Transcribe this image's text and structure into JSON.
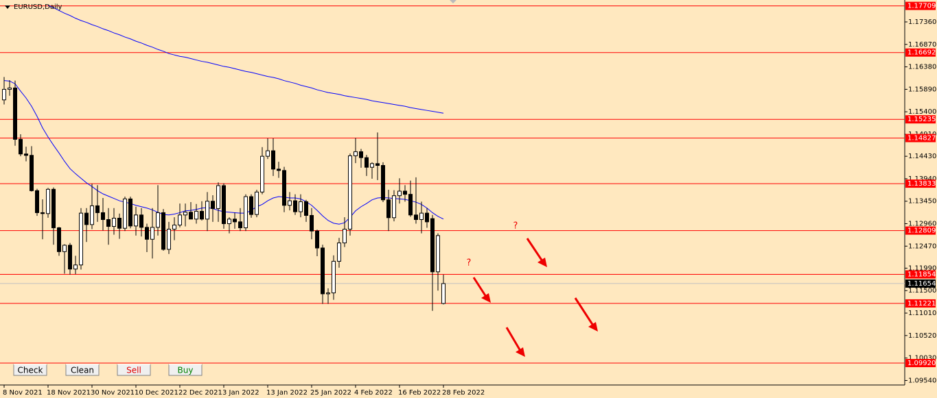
{
  "window": {
    "title": "EURUSD,Daily",
    "buttons": [
      {
        "label": "Check",
        "color": "#000000"
      },
      {
        "label": "Clean",
        "color": "#000000"
      },
      {
        "label": "Sell",
        "color": "#e00000"
      },
      {
        "label": "Buy",
        "color": "#008000"
      }
    ],
    "annotations": [
      "?",
      "?"
    ]
  },
  "chart_data": {
    "type": "candlestick",
    "categories": [
      "8 Nov 2021",
      null,
      null,
      null,
      null,
      null,
      null,
      null,
      "18 Nov 2021",
      null,
      null,
      null,
      null,
      null,
      null,
      null,
      "30 Nov 2021",
      null,
      null,
      null,
      null,
      null,
      null,
      null,
      "10 Dec 2021",
      null,
      null,
      null,
      null,
      null,
      null,
      null,
      "22 Dec 2021",
      null,
      null,
      null,
      null,
      null,
      null,
      null,
      "3 Jan 2022",
      null,
      null,
      null,
      null,
      null,
      null,
      null,
      "13 Jan 2022",
      null,
      null,
      null,
      null,
      null,
      null,
      null,
      "25 Jan 2022",
      null,
      null,
      null,
      null,
      null,
      null,
      null,
      "4 Feb 2022",
      null,
      null,
      null,
      null,
      null,
      null,
      null,
      "16 Feb 2022",
      null,
      null,
      null,
      null,
      null,
      null,
      null,
      "28 Feb 2022"
    ],
    "open": [
      1.1566,
      1.1589,
      1.1592,
      1.148,
      1.1448,
      1.1445,
      1.1368,
      1.132,
      1.1318,
      1.1371,
      1.1287,
      1.1235,
      1.1249,
      1.1197,
      1.1206,
      1.1319,
      1.1294,
      1.1335,
      1.132,
      1.1305,
      1.129,
      1.1308,
      1.1286,
      1.135,
      1.1291,
      1.1315,
      1.1288,
      1.1262,
      1.1288,
      1.132,
      1.124,
      1.1284,
      1.1293,
      1.1315,
      1.1321,
      1.1306,
      1.1323,
      1.1306,
      1.1345,
      1.1329,
      1.1379,
      1.1296,
      1.1306,
      1.13,
      1.1287,
      1.1355,
      1.1316,
      1.1365,
      1.1443,
      1.1455,
      1.1415,
      1.1412,
      1.1336,
      1.1346,
      1.1322,
      1.1344,
      1.1314,
      1.128,
      1.1243,
      1.1143,
      1.1145,
      1.1214,
      1.1254,
      1.1284,
      1.1444,
      1.1453,
      1.144,
      1.1419,
      1.1427,
      1.1423,
      1.1348,
      1.1309,
      1.1357,
      1.1367,
      1.136,
      1.1315,
      1.1305,
      1.1319,
      1.1307,
      1.1191,
      1.1122
    ],
    "high": [
      1.1616,
      1.1609,
      1.1608,
      1.1491,
      1.1464,
      1.1465,
      1.1372,
      1.1349,
      1.1374,
      1.1375,
      1.1289,
      1.1251,
      1.1254,
      1.1226,
      1.133,
      1.133,
      1.1383,
      1.138,
      1.1352,
      1.133,
      1.133,
      1.1318,
      1.1355,
      1.1355,
      1.1333,
      1.133,
      1.1296,
      1.133,
      1.138,
      1.1328,
      1.13,
      1.131,
      1.134,
      1.134,
      1.1343,
      1.1339,
      1.1345,
      1.1365,
      1.1358,
      1.1386,
      1.1384,
      1.131,
      1.132,
      1.133,
      1.136,
      1.136,
      1.137,
      1.1463,
      1.1482,
      1.1482,
      1.1431,
      1.142,
      1.1365,
      1.136,
      1.136,
      1.1348,
      1.133,
      1.1283,
      1.125,
      1.1155,
      1.1227,
      1.1265,
      1.131,
      1.1449,
      1.1483,
      1.1459,
      1.1446,
      1.143,
      1.1495,
      1.143,
      1.137,
      1.1369,
      1.1395,
      1.138,
      1.139,
      1.1397,
      1.1344,
      1.133,
      1.1315,
      1.1275,
      1.1185
    ],
    "low": [
      1.1556,
      1.1575,
      1.1466,
      1.1443,
      1.1432,
      1.1366,
      1.1313,
      1.1262,
      1.1309,
      1.125,
      1.1226,
      1.1187,
      1.1185,
      1.1186,
      1.1196,
      1.1256,
      1.1284,
      1.13,
      1.1281,
      1.125,
      1.1272,
      1.1263,
      1.128,
      1.1286,
      1.127,
      1.1268,
      1.1234,
      1.122,
      1.127,
      1.1237,
      1.123,
      1.126,
      1.1288,
      1.129,
      1.1306,
      1.1296,
      1.1303,
      1.128,
      1.13,
      1.13,
      1.1285,
      1.1275,
      1.1285,
      1.128,
      1.128,
      1.1309,
      1.131,
      1.136,
      1.1437,
      1.14,
      1.1396,
      1.1321,
      1.1325,
      1.1315,
      1.131,
      1.13,
      1.1262,
      1.1225,
      1.1121,
      1.1121,
      1.113,
      1.12,
      1.1245,
      1.127,
      1.1428,
      1.1418,
      1.14,
      1.1394,
      1.1391,
      1.1343,
      1.128,
      1.1301,
      1.134,
      1.1344,
      1.1311,
      1.1296,
      1.1275,
      1.1287,
      1.1106,
      1.115,
      1.112
    ],
    "close": [
      1.1589,
      1.1592,
      1.148,
      1.1448,
      1.1445,
      1.1368,
      1.132,
      1.1318,
      1.1371,
      1.1287,
      1.1235,
      1.1249,
      1.1197,
      1.1206,
      1.1319,
      1.1294,
      1.1335,
      1.132,
      1.1305,
      1.129,
      1.1308,
      1.1286,
      1.135,
      1.1291,
      1.1315,
      1.1288,
      1.1262,
      1.1288,
      1.132,
      1.124,
      1.1284,
      1.1293,
      1.1315,
      1.1321,
      1.1306,
      1.1323,
      1.1306,
      1.1345,
      1.1329,
      1.1379,
      1.1296,
      1.1306,
      1.13,
      1.1287,
      1.1355,
      1.1316,
      1.1365,
      1.1443,
      1.1455,
      1.1415,
      1.1412,
      1.1336,
      1.1346,
      1.1322,
      1.1344,
      1.1314,
      1.128,
      1.1243,
      1.1143,
      1.1145,
      1.1214,
      1.1254,
      1.1284,
      1.1444,
      1.1453,
      1.144,
      1.1419,
      1.1427,
      1.1423,
      1.1348,
      1.1309,
      1.1357,
      1.1367,
      1.136,
      1.1315,
      1.1305,
      1.1319,
      1.13,
      1.1191,
      1.127,
      1.11654
    ],
    "series": [
      {
        "color": "#0000ff",
        "values": [
          null,
          null,
          null,
          null,
          null,
          null,
          null,
          null,
          1.1772,
          1.1767,
          1.1761,
          1.1755,
          1.175,
          1.1744,
          1.1739,
          1.1735,
          1.173,
          1.1726,
          1.1721,
          1.1717,
          1.1712,
          1.1708,
          1.1703,
          1.1699,
          1.1694,
          1.169,
          1.1685,
          1.1681,
          1.1676,
          1.1672,
          1.1667,
          1.1664,
          1.1661,
          1.1659,
          1.1656,
          1.1653,
          1.165,
          1.1648,
          1.1645,
          1.1642,
          1.1639,
          1.1637,
          1.1634,
          1.1631,
          1.1628,
          1.1626,
          1.1623,
          1.162,
          1.1617,
          1.1615,
          1.1612,
          1.1608,
          1.1605,
          1.1602,
          1.1598,
          1.1595,
          1.1592,
          1.1588,
          1.1585,
          1.1582,
          1.158,
          1.1578,
          1.1575,
          1.1573,
          1.1571,
          1.1569,
          1.1567,
          1.1564,
          1.1562,
          1.156,
          1.1558,
          1.1556,
          1.1554,
          1.1552,
          1.1549,
          1.1547,
          1.1545,
          1.1543,
          1.1541,
          1.1539,
          1.1537
        ]
      },
      {
        "color": "#0000ff",
        "values": [
          1.1608,
          1.1607,
          1.1601,
          1.1585,
          1.157,
          1.1552,
          1.153,
          1.1505,
          1.1485,
          1.1467,
          1.145,
          1.1432,
          1.1416,
          1.1405,
          1.1395,
          1.1385,
          1.1377,
          1.1368,
          1.1361,
          1.1356,
          1.1351,
          1.1346,
          1.1343,
          1.134,
          1.1336,
          1.1333,
          1.133,
          1.1326,
          1.1321,
          1.1316,
          1.1315,
          1.1317,
          1.132,
          1.1324,
          1.1325,
          1.1327,
          1.133,
          1.1331,
          1.1329,
          1.1325,
          1.1322,
          1.1321,
          1.132,
          1.1319,
          1.1319,
          1.1325,
          1.1333,
          1.1338,
          1.1346,
          1.1352,
          1.1355,
          1.1354,
          1.1352,
          1.1352,
          1.135,
          1.1344,
          1.1336,
          1.1325,
          1.1313,
          1.1303,
          1.1297,
          1.1295,
          1.1298,
          1.131,
          1.1324,
          1.1333,
          1.134,
          1.1348,
          1.1352,
          1.1353,
          1.1352,
          1.1351,
          1.135,
          1.1349,
          1.1346,
          1.1343,
          1.1338,
          1.133,
          1.132,
          1.1312,
          1.1306
        ]
      }
    ],
    "levels": [
      1.17709,
      1.16692,
      1.15235,
      1.14827,
      1.13833,
      1.12809,
      1.11854,
      1.11221,
      {
        "value": 1.0992,
        "label": "1.09920"
      }
    ],
    "level_color": "#ff0000",
    "current_price": 1.11654,
    "ylim": [
      1.09442,
      1.17838
    ],
    "yticks": [
      {
        "value": 1.1736,
        "label": "1.17360"
      },
      {
        "value": 1.1687,
        "label": "1.16870"
      },
      {
        "value": 1.1638,
        "label": "1.16380"
      },
      {
        "value": 1.1589,
        "label": "1.15890"
      },
      {
        "value": 1.154,
        "label": "1.15400"
      },
      {
        "value": 1.1491,
        "label": "1.14910"
      },
      {
        "value": 1.1443,
        "label": "1.14430"
      },
      {
        "value": 1.1394,
        "label": "1.13940"
      },
      {
        "value": 1.1345,
        "label": "1.13450"
      },
      {
        "value": 1.1296,
        "label": "1.12960"
      },
      {
        "value": 1.1247,
        "label": "1.12470"
      },
      {
        "value": 1.1199,
        "label": "1.11990"
      },
      {
        "value": 1.115,
        "label": "1.11500"
      },
      {
        "value": 1.1101,
        "label": "1.11010"
      },
      {
        "value": 1.1052,
        "label": "1.10520"
      },
      {
        "value": 1.1003,
        "label": "1.10030"
      },
      {
        "value": 1.0954,
        "label": "1.09540"
      }
    ],
    "background": "#ffe8bf"
  }
}
